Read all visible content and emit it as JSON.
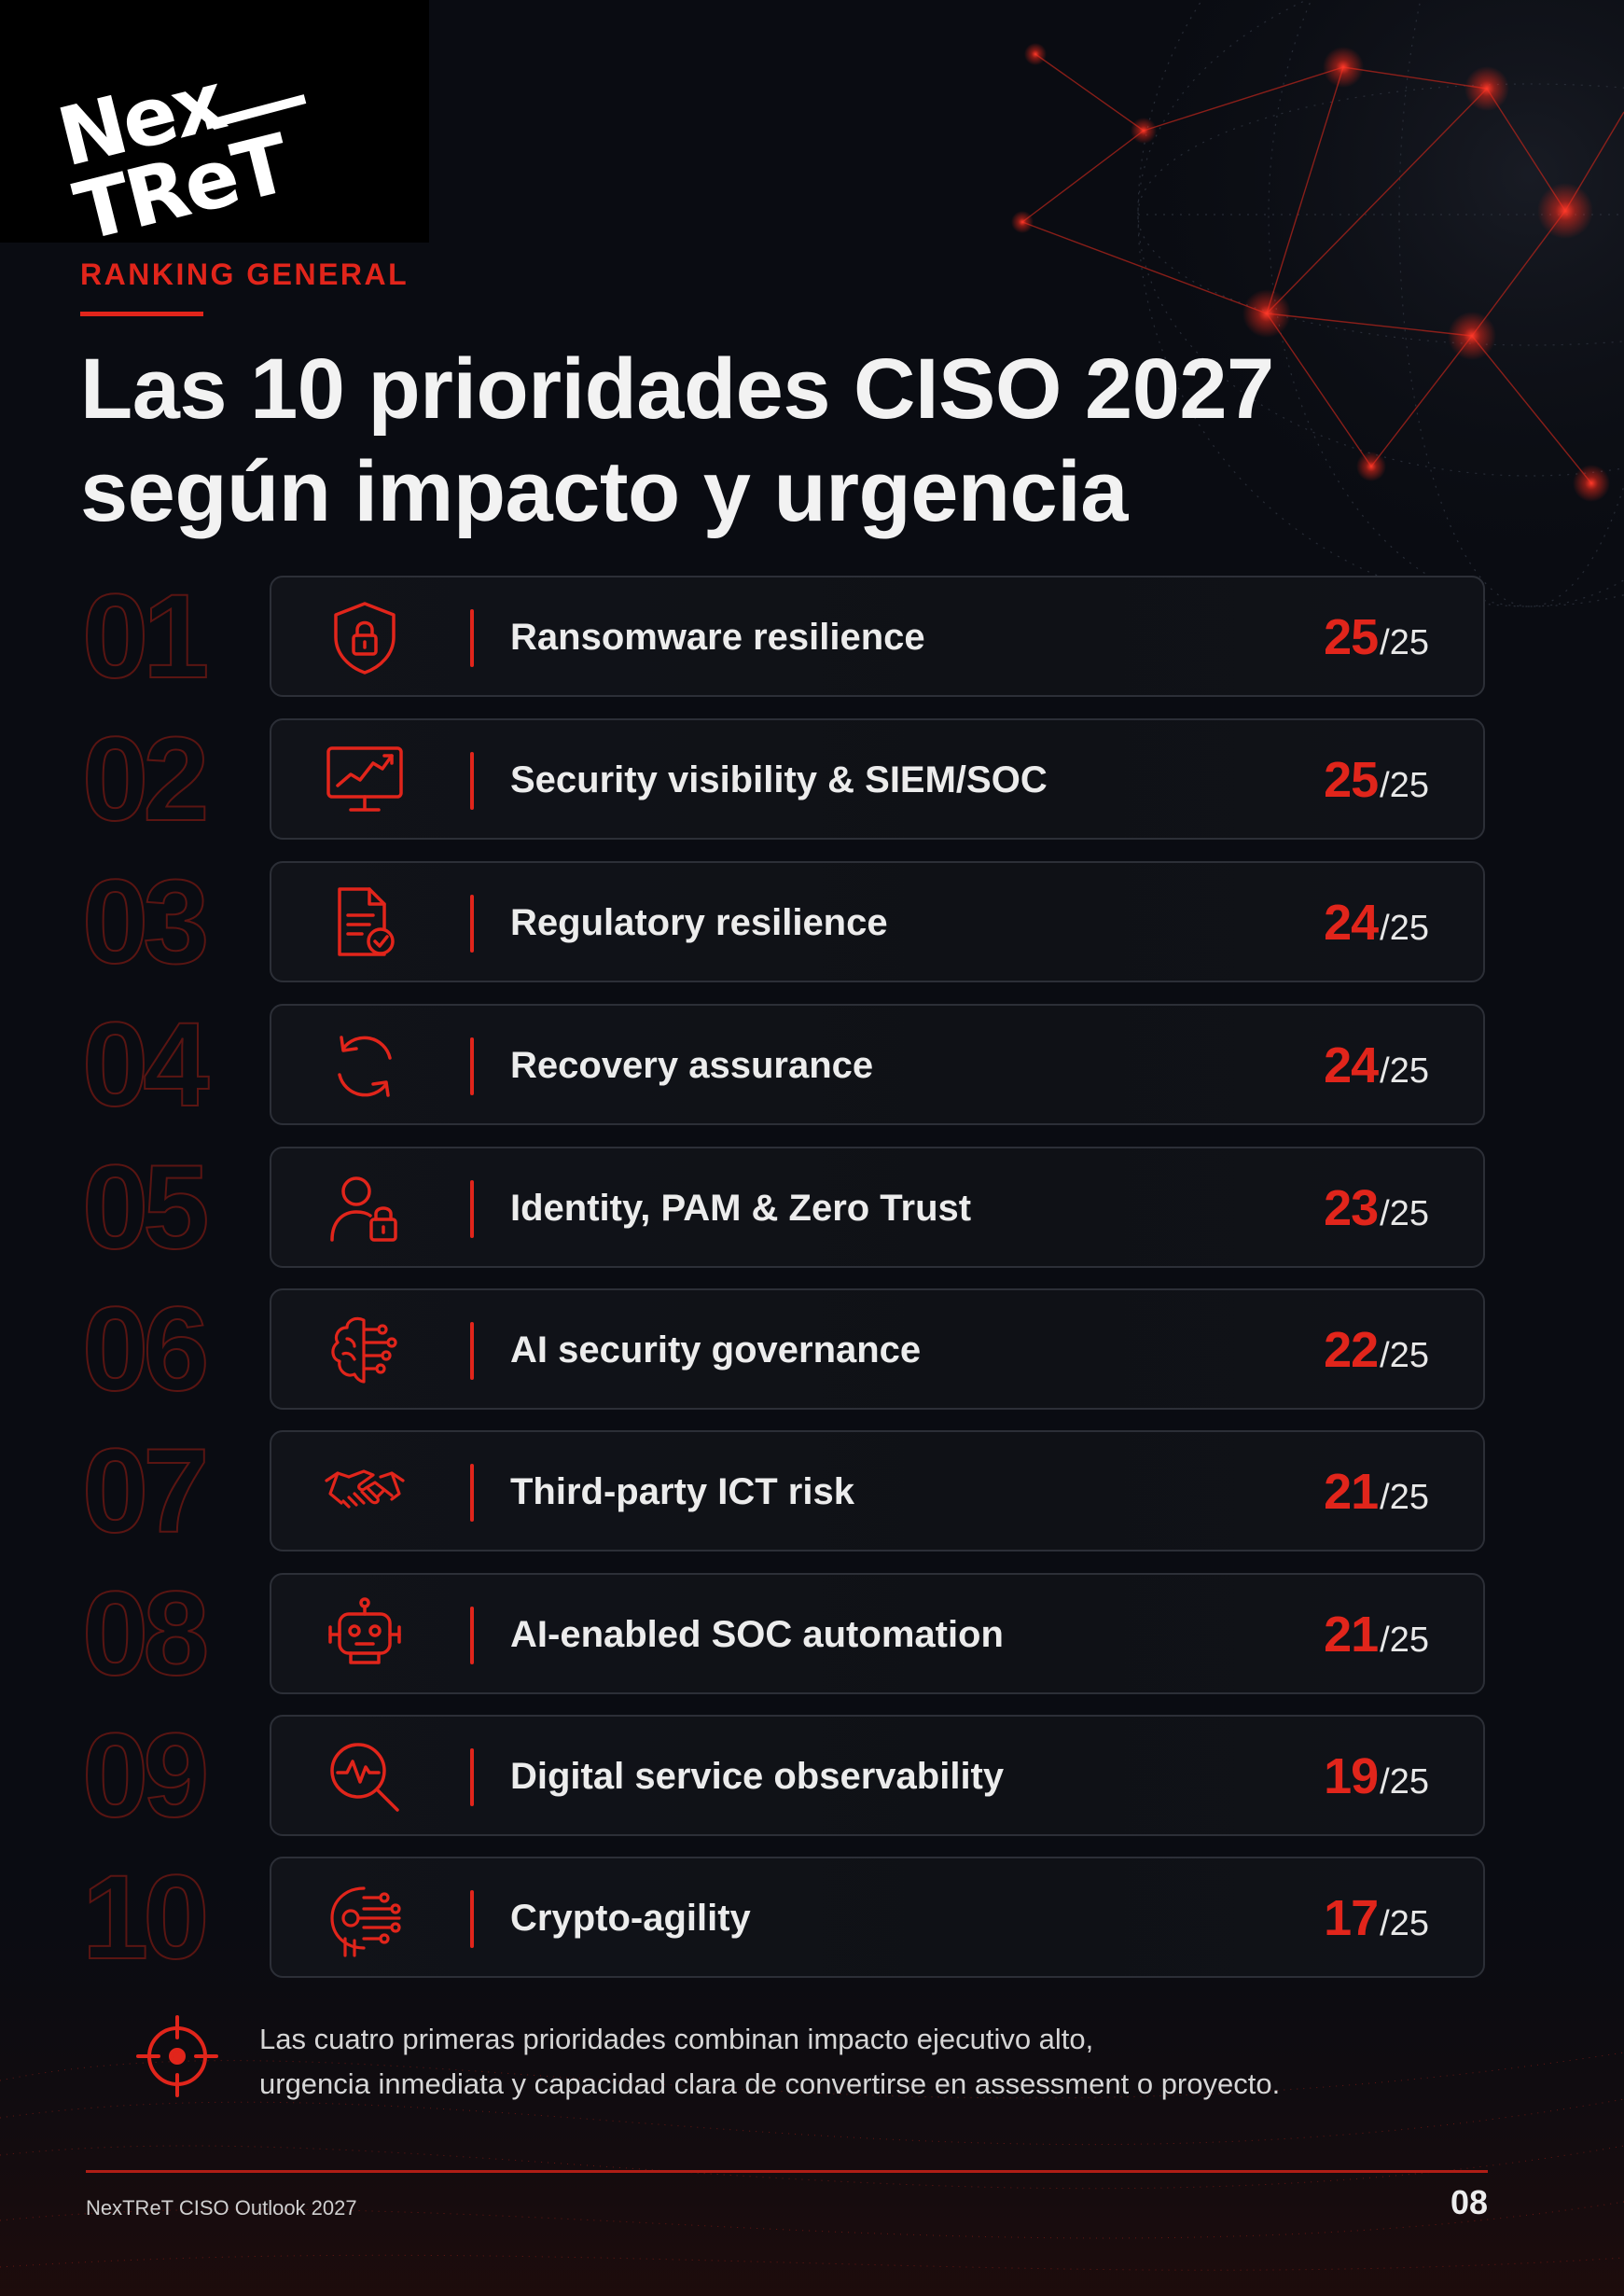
{
  "brand": {
    "logo_line1": "Nex",
    "logo_line2": "TReT"
  },
  "header": {
    "kicker": "RANKING GENERAL",
    "title_line1": "Las 10 prioridades CISO 2027",
    "title_line2": "según impacto y urgencia"
  },
  "ranking": [
    {
      "rank": "01",
      "label": "Ransomware resilience",
      "score": "25",
      "max": "/25",
      "icon": "shield-lock-icon",
      "score_value": 25
    },
    {
      "rank": "02",
      "label": "Security visibility & SIEM/SOC",
      "score": "25",
      "max": "/25",
      "icon": "monitor-chart-icon",
      "score_value": 25
    },
    {
      "rank": "03",
      "label": "Regulatory resilience",
      "score": "24",
      "max": "/25",
      "icon": "document-check-icon",
      "score_value": 24
    },
    {
      "rank": "04",
      "label": "Recovery assurance",
      "score": "24",
      "max": "/25",
      "icon": "refresh-icon",
      "score_value": 24
    },
    {
      "rank": "05",
      "label": "Identity, PAM & Zero Trust",
      "score": "23",
      "max": "/25",
      "icon": "user-lock-icon",
      "score_value": 23
    },
    {
      "rank": "06",
      "label": "AI security governance",
      "score": "22",
      "max": "/25",
      "icon": "brain-circuit-icon",
      "score_value": 22
    },
    {
      "rank": "07",
      "label": "Third-party ICT risk",
      "score": "21",
      "max": "/25",
      "icon": "handshake-icon",
      "score_value": 21
    },
    {
      "rank": "08",
      "label": "AI-enabled SOC automation",
      "score": "21",
      "max": "/25",
      "icon": "robot-icon",
      "score_value": 21
    },
    {
      "rank": "09",
      "label": "Digital service observability",
      "score": "19",
      "max": "/25",
      "icon": "magnifier-pulse-icon",
      "score_value": 19
    },
    {
      "rank": "10",
      "label": "Crypto-agility",
      "score": "17",
      "max": "/25",
      "icon": "circuit-key-icon",
      "score_value": 17
    }
  ],
  "note": {
    "line1": "Las cuatro primeras prioridades combinan impacto ejecutivo alto,",
    "line2": "urgencia inmediata y capacidad clara de convertirse en assessment o proyecto.",
    "icon": "target-icon"
  },
  "footer": {
    "left": "NexTReT CISO Outlook 2027",
    "page": "08"
  },
  "colors": {
    "accent": "#e1251b",
    "background": "#0a0c12",
    "card_border": "#2c2f37",
    "text": "#ececec"
  }
}
